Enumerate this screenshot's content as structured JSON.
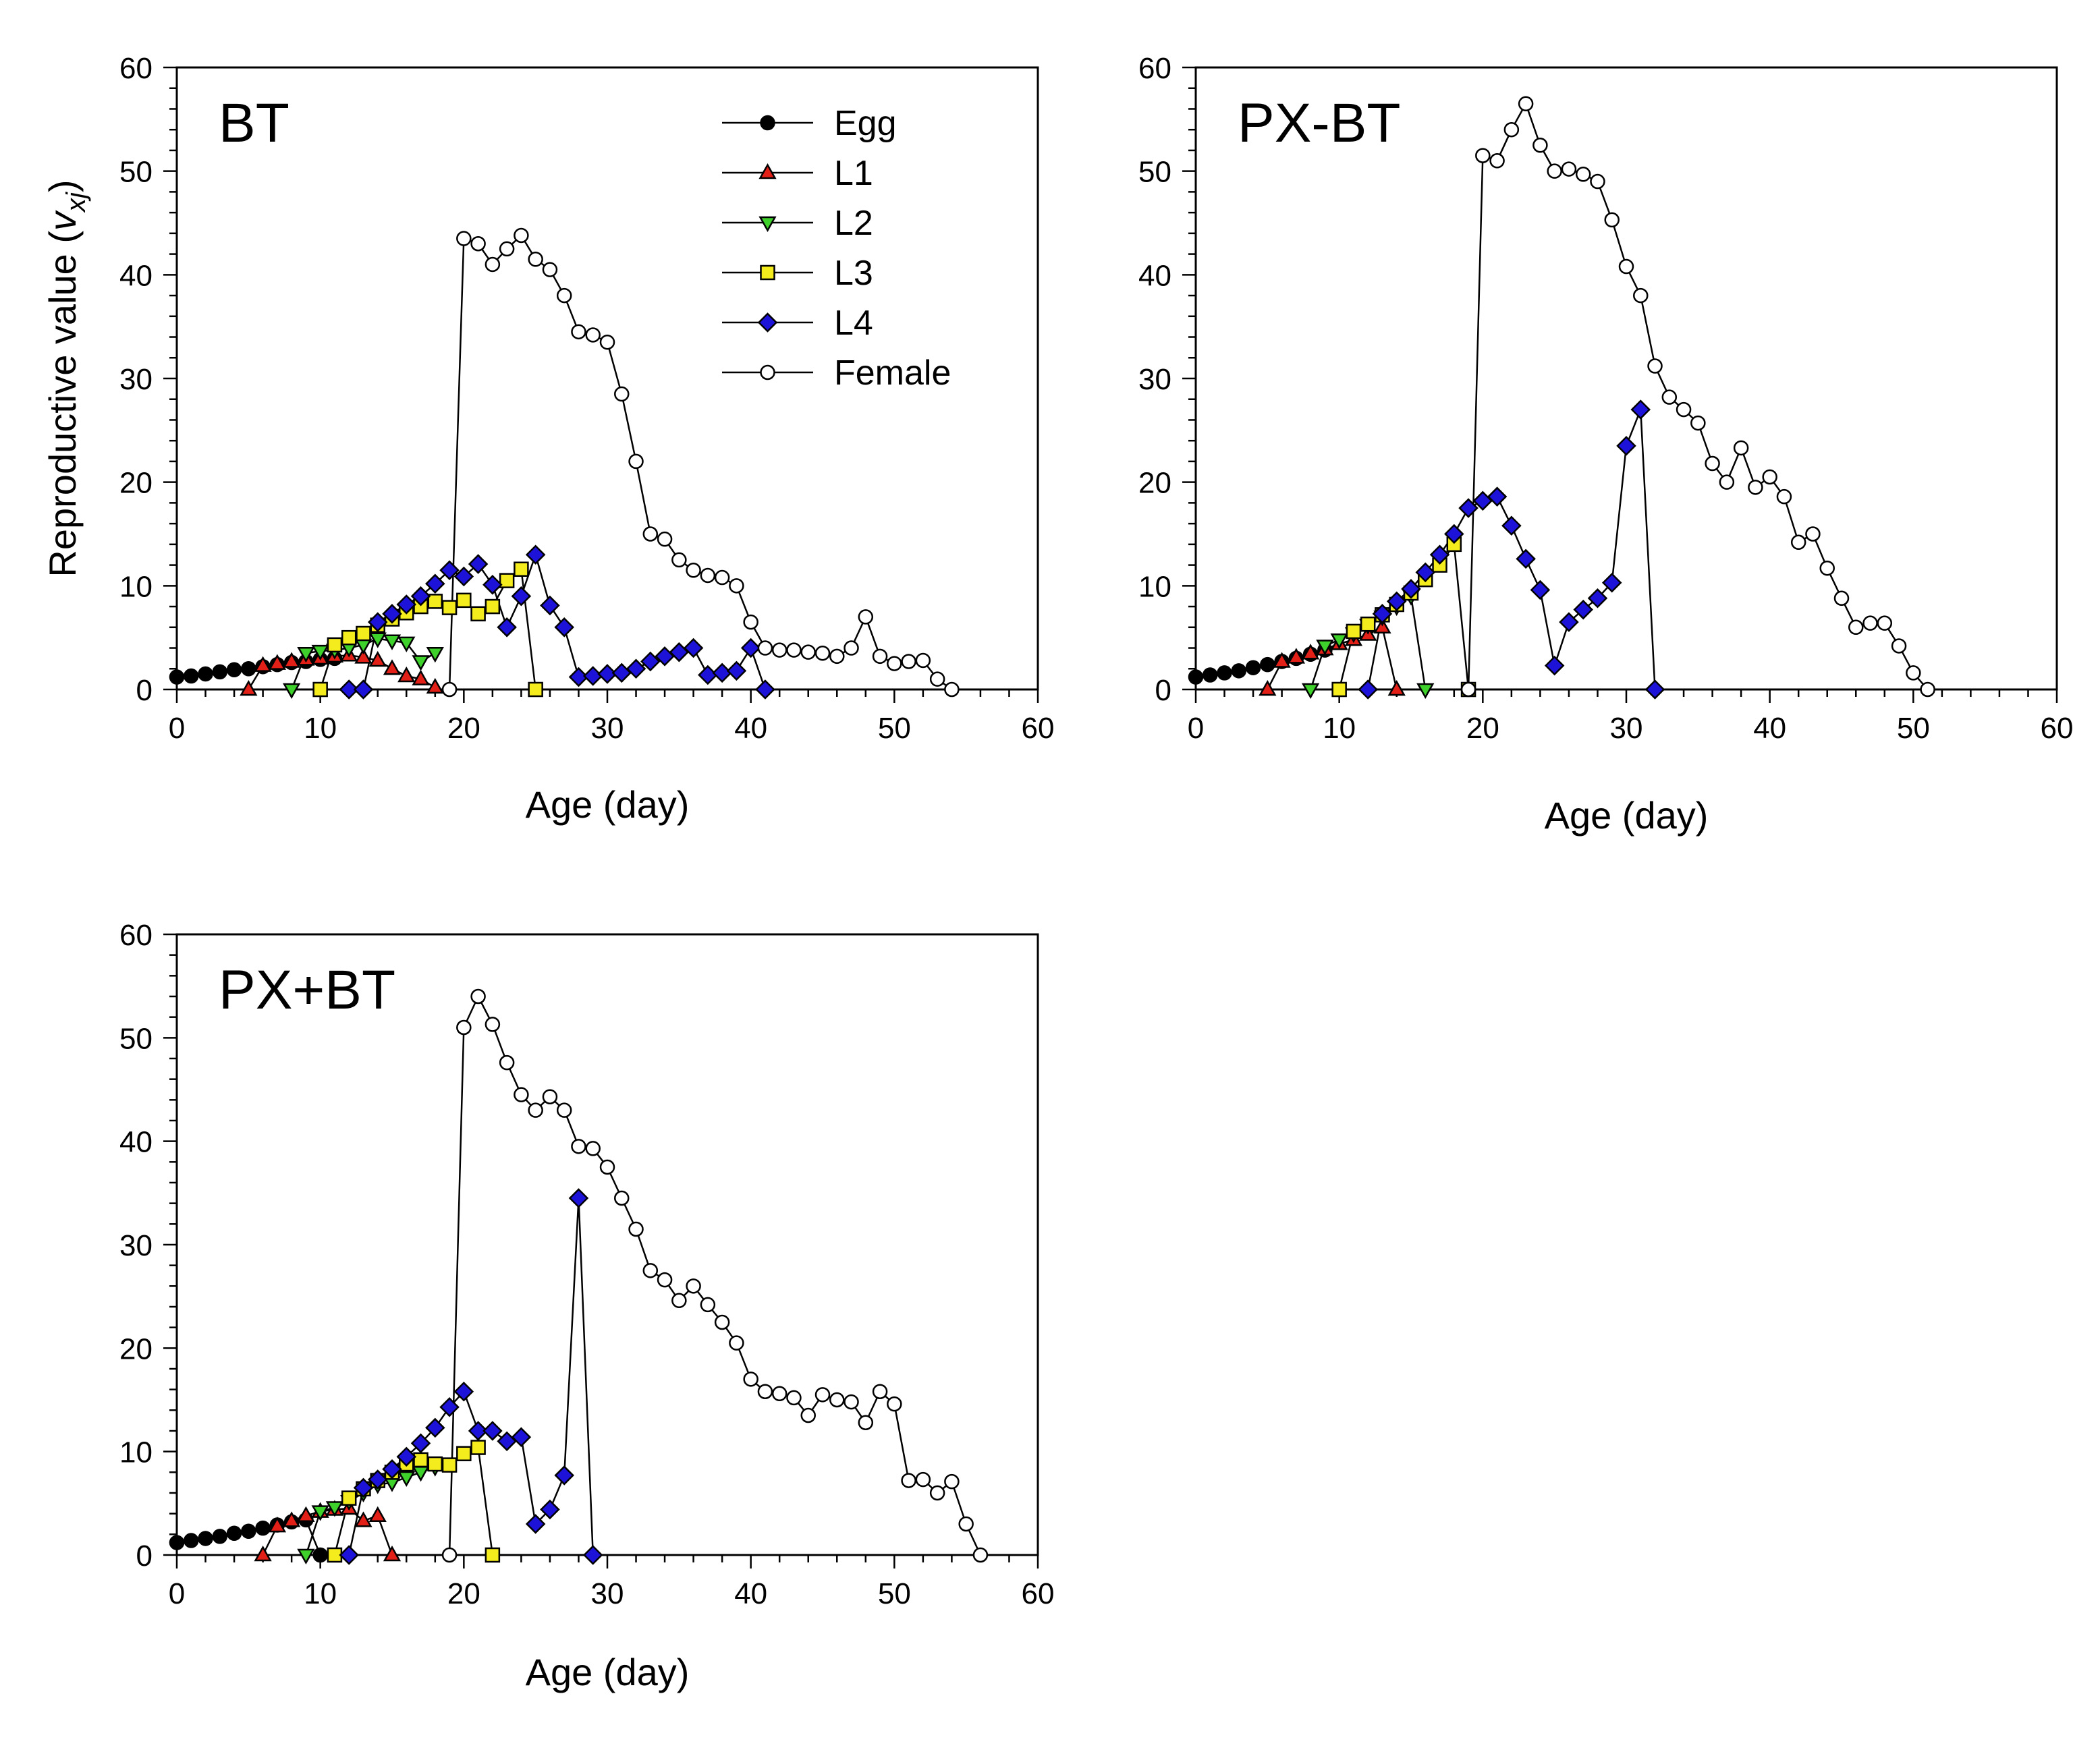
{
  "figure": {
    "xlabel": "Age (day)",
    "ylabel_main": "Reproductive value (",
    "ylabel_var": "v",
    "ylabel_sub": "xj",
    "ylabel_close": ")",
    "legend": [
      "Egg",
      "L1",
      "L2",
      "L3",
      "L4",
      "Female"
    ]
  },
  "chart_data": [
    {
      "type": "line",
      "title": "BT",
      "xlabel": "Age (day)",
      "ylabel": "Reproductive value (vxj)",
      "xlim": [
        0,
        60
      ],
      "ylim": [
        0,
        60
      ],
      "xticks": [
        0,
        10,
        20,
        30,
        40,
        50,
        60
      ],
      "yticks": [
        0,
        10,
        20,
        30,
        40,
        50,
        60
      ],
      "legend_position": "top-right",
      "series": [
        {
          "name": "Egg",
          "x": [
            0,
            1,
            2,
            3,
            4,
            5,
            6,
            7,
            8,
            9,
            10,
            11
          ],
          "y": [
            1.2,
            1.3,
            1.5,
            1.7,
            1.9,
            2.0,
            2.2,
            2.4,
            2.6,
            2.7,
            2.9,
            3.0
          ]
        },
        {
          "name": "L1",
          "x": [
            5,
            6,
            7,
            8,
            9,
            10,
            11,
            12,
            13,
            14,
            15,
            16,
            17,
            18
          ],
          "y": [
            0,
            2.3,
            2.5,
            2.7,
            2.9,
            3.0,
            3.2,
            3.3,
            3.1,
            2.8,
            2.0,
            1.3,
            1.0,
            0.2
          ]
        },
        {
          "name": "L2",
          "x": [
            8,
            9,
            10,
            11,
            12,
            13,
            14,
            15,
            16,
            17,
            18
          ],
          "y": [
            0,
            3.5,
            3.7,
            3.8,
            4.0,
            4.3,
            4.9,
            4.7,
            4.5,
            2.7,
            3.5
          ]
        },
        {
          "name": "L3",
          "x": [
            10,
            11,
            12,
            13,
            14,
            15,
            16,
            17,
            18,
            19,
            20,
            21,
            22,
            23,
            24,
            25
          ],
          "y": [
            0,
            4.3,
            5.0,
            5.4,
            6.2,
            6.8,
            7.4,
            8.0,
            8.5,
            7.9,
            8.6,
            7.3,
            8.0,
            10.5,
            11.6,
            0
          ]
        },
        {
          "name": "L4",
          "x": [
            12,
            13,
            14,
            15,
            16,
            17,
            18,
            19,
            20,
            21,
            22,
            23,
            24,
            25,
            26,
            27,
            28,
            29,
            30,
            31,
            32,
            33,
            34,
            35,
            36,
            37,
            38,
            39,
            40,
            41
          ],
          "y": [
            0,
            0,
            6.5,
            7.3,
            8.2,
            9.0,
            10.2,
            11.5,
            10.9,
            12.1,
            10.1,
            6.0,
            9.0,
            13.0,
            8.1,
            6.0,
            1.2,
            1.3,
            1.5,
            1.6,
            2.0,
            2.7,
            3.2,
            3.6,
            4.0,
            1.4,
            1.6,
            1.8,
            4.0,
            0
          ]
        },
        {
          "name": "Female",
          "x": [
            19,
            20,
            21,
            22,
            23,
            24,
            25,
            26,
            27,
            28,
            29,
            30,
            31,
            32,
            33,
            34,
            35,
            36,
            37,
            38,
            39,
            40,
            41,
            42,
            43,
            44,
            45,
            46,
            47,
            48,
            49,
            50,
            51,
            52,
            53,
            54
          ],
          "y": [
            0,
            43.5,
            43.0,
            41.0,
            42.5,
            43.8,
            41.5,
            40.5,
            38.0,
            34.5,
            34.2,
            33.5,
            28.5,
            22.0,
            15.0,
            14.5,
            12.5,
            11.5,
            11.0,
            10.8,
            10.0,
            6.5,
            4.0,
            3.8,
            3.8,
            3.6,
            3.5,
            3.2,
            4.0,
            7.0,
            3.2,
            2.5,
            2.7,
            2.8,
            1.0,
            0
          ]
        }
      ]
    },
    {
      "type": "line",
      "title": "PX-BT",
      "xlabel": "Age (day)",
      "ylabel": "",
      "xlim": [
        0,
        60
      ],
      "ylim": [
        0,
        60
      ],
      "xticks": [
        0,
        10,
        20,
        30,
        40,
        50,
        60
      ],
      "yticks": [
        0,
        10,
        20,
        30,
        40,
        50,
        60
      ],
      "series": [
        {
          "name": "Egg",
          "x": [
            0,
            1,
            2,
            3,
            4,
            5,
            6,
            7,
            8,
            9
          ],
          "y": [
            1.2,
            1.4,
            1.6,
            1.8,
            2.1,
            2.4,
            2.7,
            3.0,
            3.4,
            3.8
          ]
        },
        {
          "name": "L1",
          "x": [
            5,
            6,
            7,
            8,
            9,
            10,
            11,
            12,
            13,
            14
          ],
          "y": [
            0,
            2.7,
            3.1,
            3.5,
            3.9,
            4.4,
            4.8,
            5.3,
            6.0,
            0
          ]
        },
        {
          "name": "L2",
          "x": [
            8,
            9,
            10,
            11,
            12,
            13,
            14,
            15,
            16
          ],
          "y": [
            0,
            4.2,
            4.8,
            5.4,
            6.2,
            7.0,
            8.0,
            9.0,
            0
          ]
        },
        {
          "name": "L3",
          "x": [
            10,
            11,
            12,
            13,
            14,
            15,
            16,
            17,
            18,
            19
          ],
          "y": [
            0,
            5.6,
            6.3,
            7.2,
            8.2,
            9.3,
            10.6,
            12.0,
            14.0,
            0
          ]
        },
        {
          "name": "L4",
          "x": [
            12,
            13,
            14,
            15,
            16,
            17,
            18,
            19,
            20,
            21,
            22,
            23,
            24,
            25,
            26,
            27,
            28,
            29,
            30,
            31,
            32
          ],
          "y": [
            0,
            7.3,
            8.5,
            9.7,
            11.3,
            13.0,
            15.0,
            17.5,
            18.2,
            18.6,
            15.8,
            12.6,
            9.6,
            2.3,
            6.5,
            7.7,
            8.8,
            10.3,
            23.5,
            27.0,
            0
          ]
        },
        {
          "name": "Female",
          "x": [
            19,
            20,
            21,
            22,
            23,
            24,
            25,
            26,
            27,
            28,
            29,
            30,
            31,
            32,
            33,
            34,
            35,
            36,
            37,
            38,
            39,
            40,
            41,
            42,
            43,
            44,
            45,
            46,
            47,
            48,
            49,
            50,
            51
          ],
          "y": [
            0,
            51.5,
            51.0,
            54.0,
            56.5,
            52.5,
            50.0,
            50.2,
            49.7,
            49.0,
            45.3,
            40.8,
            38.0,
            31.2,
            28.2,
            27.0,
            25.7,
            21.8,
            20.0,
            23.3,
            19.5,
            20.5,
            18.6,
            14.2,
            15.0,
            11.7,
            8.8,
            6.0,
            6.4,
            6.4,
            4.2,
            1.6,
            0
          ]
        }
      ]
    },
    {
      "type": "line",
      "title": "PX+BT",
      "xlabel": "Age (day)",
      "ylabel": "",
      "xlim": [
        0,
        60
      ],
      "ylim": [
        0,
        60
      ],
      "xticks": [
        0,
        10,
        20,
        30,
        40,
        50,
        60
      ],
      "yticks": [
        0,
        10,
        20,
        30,
        40,
        50,
        60
      ],
      "series": [
        {
          "name": "Egg",
          "x": [
            0,
            1,
            2,
            3,
            4,
            5,
            6,
            7,
            8,
            9,
            10
          ],
          "y": [
            1.2,
            1.4,
            1.6,
            1.8,
            2.1,
            2.3,
            2.6,
            2.9,
            3.2,
            3.4,
            0
          ]
        },
        {
          "name": "L1",
          "x": [
            6,
            7,
            8,
            9,
            10,
            11,
            12,
            13,
            14,
            15
          ],
          "y": [
            0,
            2.8,
            3.3,
            3.8,
            4.2,
            4.4,
            4.5,
            3.3,
            3.8,
            0
          ]
        },
        {
          "name": "L2",
          "x": [
            9,
            10,
            11,
            12,
            13,
            14,
            15,
            16,
            17,
            18
          ],
          "y": [
            0,
            4.2,
            4.6,
            5.2,
            6.0,
            6.8,
            7.0,
            7.5,
            8.0,
            8.5
          ]
        },
        {
          "name": "L3",
          "x": [
            11,
            12,
            13,
            14,
            15,
            16,
            17,
            18,
            19,
            20,
            21,
            22
          ],
          "y": [
            0,
            5.5,
            6.4,
            7.2,
            8.0,
            8.8,
            9.2,
            8.8,
            8.7,
            9.8,
            10.4,
            0
          ]
        },
        {
          "name": "L4",
          "x": [
            12,
            13,
            14,
            15,
            16,
            17,
            18,
            19,
            20,
            21,
            22,
            23,
            24,
            25,
            26,
            27,
            28,
            29
          ],
          "y": [
            0,
            6.5,
            7.3,
            8.3,
            9.5,
            10.8,
            12.3,
            14.3,
            15.8,
            12.0,
            12.0,
            11.0,
            11.4,
            3.0,
            4.4,
            7.7,
            34.5,
            0
          ]
        },
        {
          "name": "Female",
          "x": [
            19,
            20,
            21,
            22,
            23,
            24,
            25,
            26,
            27,
            28,
            29,
            30,
            31,
            32,
            33,
            34,
            35,
            36,
            37,
            38,
            39,
            40,
            41,
            42,
            43,
            44,
            45,
            46,
            47,
            48,
            49,
            50,
            51,
            52,
            53,
            54,
            55,
            56
          ],
          "y": [
            0,
            51.0,
            54.0,
            51.3,
            47.6,
            44.5,
            43.0,
            44.3,
            43.0,
            39.5,
            39.3,
            37.5,
            34.5,
            31.5,
            27.5,
            26.6,
            24.6,
            26.0,
            24.2,
            22.5,
            20.5,
            17.0,
            15.8,
            15.6,
            15.2,
            13.5,
            15.5,
            15.0,
            14.8,
            12.8,
            15.8,
            14.6,
            7.2,
            7.3,
            6.0,
            7.1,
            3.0,
            0
          ]
        }
      ]
    }
  ]
}
